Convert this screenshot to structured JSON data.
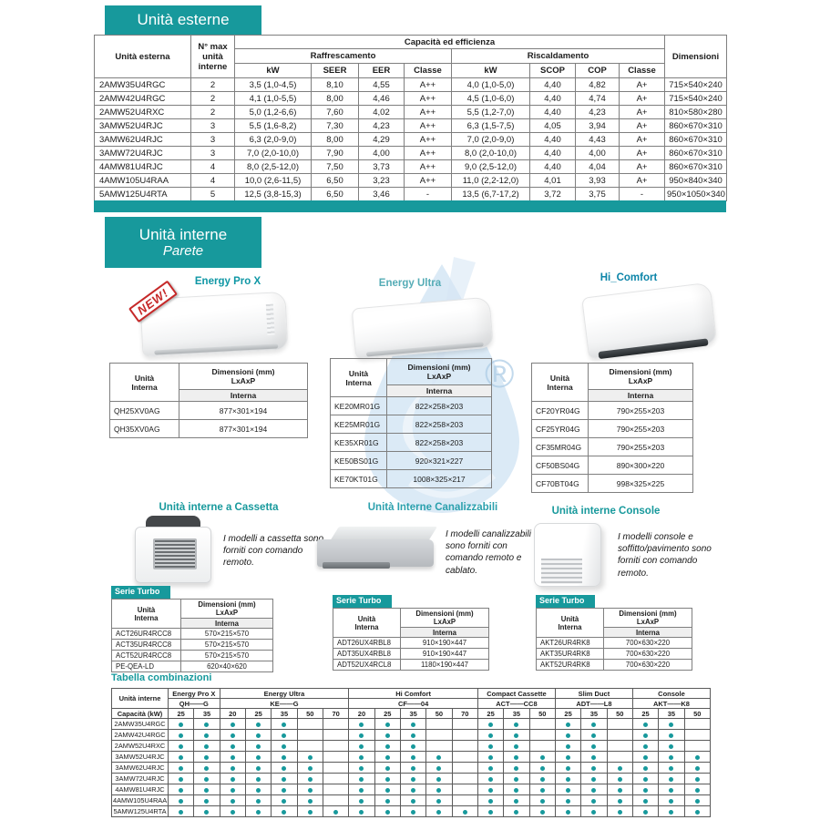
{
  "theme": {
    "accent": "#17999c",
    "badge_color": "#c62828",
    "watermark_blue": "#bdd7ee"
  },
  "watermark": {
    "symbol": "®"
  },
  "outdoor": {
    "title": "Unità esterne",
    "header": {
      "unit": "Unità esterna",
      "max_units": "N° max\nunità\ninterne",
      "capacity": "Capacità ed efficienza",
      "cooling": "Raffrescamento",
      "heating": "Riscaldamento",
      "kw_cool": "kW",
      "seer": "SEER",
      "eer": "EER",
      "classe_cool": "Classe",
      "kw_heat": "kW",
      "scop": "SCOP",
      "cop": "COP",
      "classe_heat": "Classe",
      "dimensions": "Dimensioni"
    },
    "rows": [
      [
        "2AMW35U4RGC",
        "2",
        "3,5 (1,0-4,5)",
        "8,10",
        "4,55",
        "A++",
        "4,0 (1,0-5,0)",
        "4,40",
        "4,82",
        "A+",
        "715×540×240"
      ],
      [
        "2AMW42U4RGC",
        "2",
        "4,1 (1,0-5,5)",
        "8,00",
        "4,46",
        "A++",
        "4,5 (1,0-6,0)",
        "4,40",
        "4,74",
        "A+",
        "715×540×240"
      ],
      [
        "2AMW52U4RXC",
        "2",
        "5,0 (1,2-6,6)",
        "7,60",
        "4,02",
        "A++",
        "5,5 (1,2-7,0)",
        "4,40",
        "4,23",
        "A+",
        "810×580×280"
      ],
      [
        "3AMW52U4RJC",
        "3",
        "5,5 (1,6-8,2)",
        "7,30",
        "4,23",
        "A++",
        "6,3 (1,5-7,5)",
        "4,05",
        "3,94",
        "A+",
        "860×670×310"
      ],
      [
        "3AMW62U4RJC",
        "3",
        "6,3 (2,0-9,0)",
        "8,00",
        "4,29",
        "A++",
        "7,0 (2,0-9,0)",
        "4,40",
        "4,43",
        "A+",
        "860×670×310"
      ],
      [
        "3AMW72U4RJC",
        "3",
        "7,0 (2,0-10,0)",
        "7,90",
        "4,00",
        "A++",
        "8,0 (2,0-10,0)",
        "4,40",
        "4,00",
        "A+",
        "860×670×310"
      ],
      [
        "4AMW81U4RJC",
        "4",
        "8,0 (2,5-12,0)",
        "7,50",
        "3,73",
        "A++",
        "9,0 (2,5-12,0)",
        "4,40",
        "4,04",
        "A+",
        "860×670×310"
      ],
      [
        "4AMW105U4RAA",
        "4",
        "10,0 (2,6-11,5)",
        "6,50",
        "3,23",
        "A++",
        "11,0 (2,2-12,0)",
        "4,01",
        "3,93",
        "A+",
        "950×840×340"
      ],
      [
        "5AMW125U4RTA",
        "5",
        "12,5 (3,8-15,3)",
        "6,50",
        "3,46",
        "-",
        "13,5 (6,7-17,2)",
        "3,72",
        "3,75",
        "-",
        "950×1050×340"
      ]
    ]
  },
  "indoor": {
    "title": "Unità interne",
    "subtitle": "Parete",
    "table_labels": {
      "unit": "Unità\nInterna",
      "dims": "Dimensioni (mm)\nLxAxP",
      "interna": "Interna"
    },
    "wall_products": [
      {
        "name": "Energy Pro X",
        "badge": "NEW!",
        "rows": [
          [
            "QH25XV0AG",
            "877×301×194"
          ],
          [
            "QH35XV0AG",
            "877×301×194"
          ]
        ]
      },
      {
        "name": "Energy Ultra",
        "rows": [
          [
            "KE20MR01G",
            "822×258×203"
          ],
          [
            "KE25MR01G",
            "822×258×203"
          ],
          [
            "KE35XR01G",
            "822×258×203"
          ],
          [
            "KE50BS01G",
            "920×321×227"
          ],
          [
            "KE70KT01G",
            "1008×325×217"
          ]
        ]
      },
      {
        "name": "Hi_Comfort",
        "rows": [
          [
            "CF20YR04G",
            "790×255×203"
          ],
          [
            "CF25YR04G",
            "790×255×203"
          ],
          [
            "CF35MR04G",
            "790×255×203"
          ],
          [
            "CF50BS04G",
            "890×300×220"
          ],
          [
            "CF70BT04G",
            "998×325×225"
          ]
        ]
      }
    ]
  },
  "special_sections": [
    {
      "title": "Unità interne a Cassetta",
      "description": "I modelli a cassetta sono forniti con comando remoto.",
      "series": "Serie Turbo",
      "rows": [
        [
          "ACT26UR4RCC8",
          "570×215×570"
        ],
        [
          "ACT35UR4RCC8",
          "570×215×570"
        ],
        [
          "ACT52UR4RCC8",
          "570×215×570"
        ],
        [
          "PE-QEA-LD",
          "620×40×620"
        ]
      ]
    },
    {
      "title": "Unità Interne Canalizzabili",
      "description": "I modelli canalizzabili sono forniti con comando remoto e cablato.",
      "series": "Serie Turbo",
      "rows": [
        [
          "ADT26UX4RBL8",
          "910×190×447"
        ],
        [
          "ADT35UX4RBL8",
          "910×190×447"
        ],
        [
          "ADT52UX4RCL8",
          "1180×190×447"
        ]
      ]
    },
    {
      "title": "Unità interne Console",
      "description": "I modelli console e soffitto/pavimento sono forniti con comando remoto.",
      "series": "Serie Turbo",
      "rows": [
        [
          "AKT26UR4RK8",
          "700×630×220"
        ],
        [
          "AKT35UR4RK8",
          "700×630×220"
        ],
        [
          "AKT52UR4RK8",
          "700×630×220"
        ]
      ]
    }
  ],
  "combinations": {
    "title": "Tabella combinazioni",
    "row_header": "Unità interne",
    "capacity_label": "Capacità (kW)",
    "groups": [
      {
        "name": "Energy Pro X",
        "code": "QH——G",
        "capacities": [
          "25",
          "35"
        ]
      },
      {
        "name": "Energy Ultra",
        "code": "KE——G",
        "capacities": [
          "20",
          "25",
          "35",
          "50",
          "70"
        ]
      },
      {
        "name": "Hi Comfort",
        "code": "CF——04",
        "capacities": [
          "20",
          "25",
          "35",
          "50",
          "70"
        ]
      },
      {
        "name": "Compact Cassette",
        "code": "ACT——CC8",
        "capacities": [
          "25",
          "35",
          "50"
        ]
      },
      {
        "name": "Slim Duct",
        "code": "ADT——L8",
        "capacities": [
          "25",
          "35",
          "50"
        ]
      },
      {
        "name": "Console",
        "code": "AKT——K8",
        "capacities": [
          "25",
          "35",
          "50"
        ]
      }
    ],
    "rows": [
      {
        "model": "2AMW35U4RGC",
        "dots": [
          1,
          1,
          1,
          1,
          1,
          0,
          0,
          1,
          1,
          1,
          0,
          0,
          1,
          1,
          0,
          1,
          1,
          0,
          1,
          1,
          0
        ]
      },
      {
        "model": "2AMW42U4RGC",
        "dots": [
          1,
          1,
          1,
          1,
          1,
          0,
          0,
          1,
          1,
          1,
          0,
          0,
          1,
          1,
          0,
          1,
          1,
          0,
          1,
          1,
          0
        ]
      },
      {
        "model": "2AMW52U4RXC",
        "dots": [
          1,
          1,
          1,
          1,
          1,
          0,
          0,
          1,
          1,
          1,
          0,
          0,
          1,
          1,
          0,
          1,
          1,
          0,
          1,
          1,
          0
        ]
      },
      {
        "model": "3AMW52U4RJC",
        "dots": [
          1,
          1,
          1,
          1,
          1,
          1,
          0,
          1,
          1,
          1,
          1,
          0,
          1,
          1,
          1,
          1,
          1,
          0,
          1,
          1,
          1
        ]
      },
      {
        "model": "3AMW62U4RJC",
        "dots": [
          1,
          1,
          1,
          1,
          1,
          1,
          0,
          1,
          1,
          1,
          1,
          0,
          1,
          1,
          1,
          1,
          1,
          1,
          1,
          1,
          1
        ]
      },
      {
        "model": "3AMW72U4RJC",
        "dots": [
          1,
          1,
          1,
          1,
          1,
          1,
          0,
          1,
          1,
          1,
          1,
          0,
          1,
          1,
          1,
          1,
          1,
          1,
          1,
          1,
          1
        ]
      },
      {
        "model": "4AMW81U4RJC",
        "dots": [
          1,
          1,
          1,
          1,
          1,
          1,
          0,
          1,
          1,
          1,
          1,
          0,
          1,
          1,
          1,
          1,
          1,
          1,
          1,
          1,
          1
        ]
      },
      {
        "model": "4AMW105U4RAA",
        "dots": [
          1,
          1,
          1,
          1,
          1,
          1,
          0,
          1,
          1,
          1,
          1,
          0,
          1,
          1,
          1,
          1,
          1,
          1,
          1,
          1,
          1
        ]
      },
      {
        "model": "5AMW125U4RTA",
        "dots": [
          1,
          1,
          1,
          1,
          1,
          1,
          1,
          1,
          1,
          1,
          1,
          1,
          1,
          1,
          1,
          1,
          1,
          1,
          1,
          1,
          1
        ]
      }
    ]
  }
}
